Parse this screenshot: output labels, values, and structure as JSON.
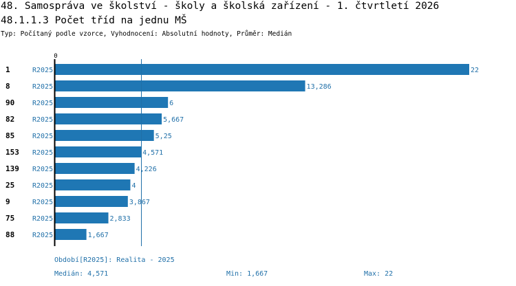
{
  "header": {
    "title_line1": "48. Samospráva ve školství - školy a školská zařízení - 1. čtvrtletí 2026",
    "title_line2": "48.1.1.3 Počet tříd na jednu MŠ",
    "subtitle": "Typ: Počítaný podle vzorce, Vyhodnocení: Absolutní hodnoty, Průměr: Medián"
  },
  "chart_data": {
    "type": "bar",
    "orientation": "horizontal",
    "x_tick_labels": [
      "0"
    ],
    "xlim": [
      0,
      22
    ],
    "median_value": 4.571,
    "series_label": "R2025",
    "rows": [
      {
        "category": "1",
        "series": "R2025",
        "value": 22,
        "label": "22"
      },
      {
        "category": "8",
        "series": "R2025",
        "value": 13.286,
        "label": "13,286"
      },
      {
        "category": "90",
        "series": "R2025",
        "value": 6,
        "label": "6"
      },
      {
        "category": "82",
        "series": "R2025",
        "value": 5.667,
        "label": "5,667"
      },
      {
        "category": "85",
        "series": "R2025",
        "value": 5.25,
        "label": "5,25"
      },
      {
        "category": "153",
        "series": "R2025",
        "value": 4.571,
        "label": "4,571"
      },
      {
        "category": "139",
        "series": "R2025",
        "value": 4.226,
        "label": "4,226"
      },
      {
        "category": "25",
        "series": "R2025",
        "value": 4,
        "label": "4"
      },
      {
        "category": "9",
        "series": "R2025",
        "value": 3.867,
        "label": "3,867"
      },
      {
        "category": "75",
        "series": "R2025",
        "value": 2.833,
        "label": "2,833"
      },
      {
        "category": "88",
        "series": "R2025",
        "value": 1.667,
        "label": "1,667"
      }
    ],
    "colors": {
      "bar": "#1f77b4",
      "text": "#1f6fa8",
      "axis": "#000000"
    }
  },
  "footer": {
    "period": "Období[R2025]: Realita - 2025",
    "median": "Medián: 4,571",
    "min": "Min: 1,667",
    "max": "Max: 22"
  }
}
